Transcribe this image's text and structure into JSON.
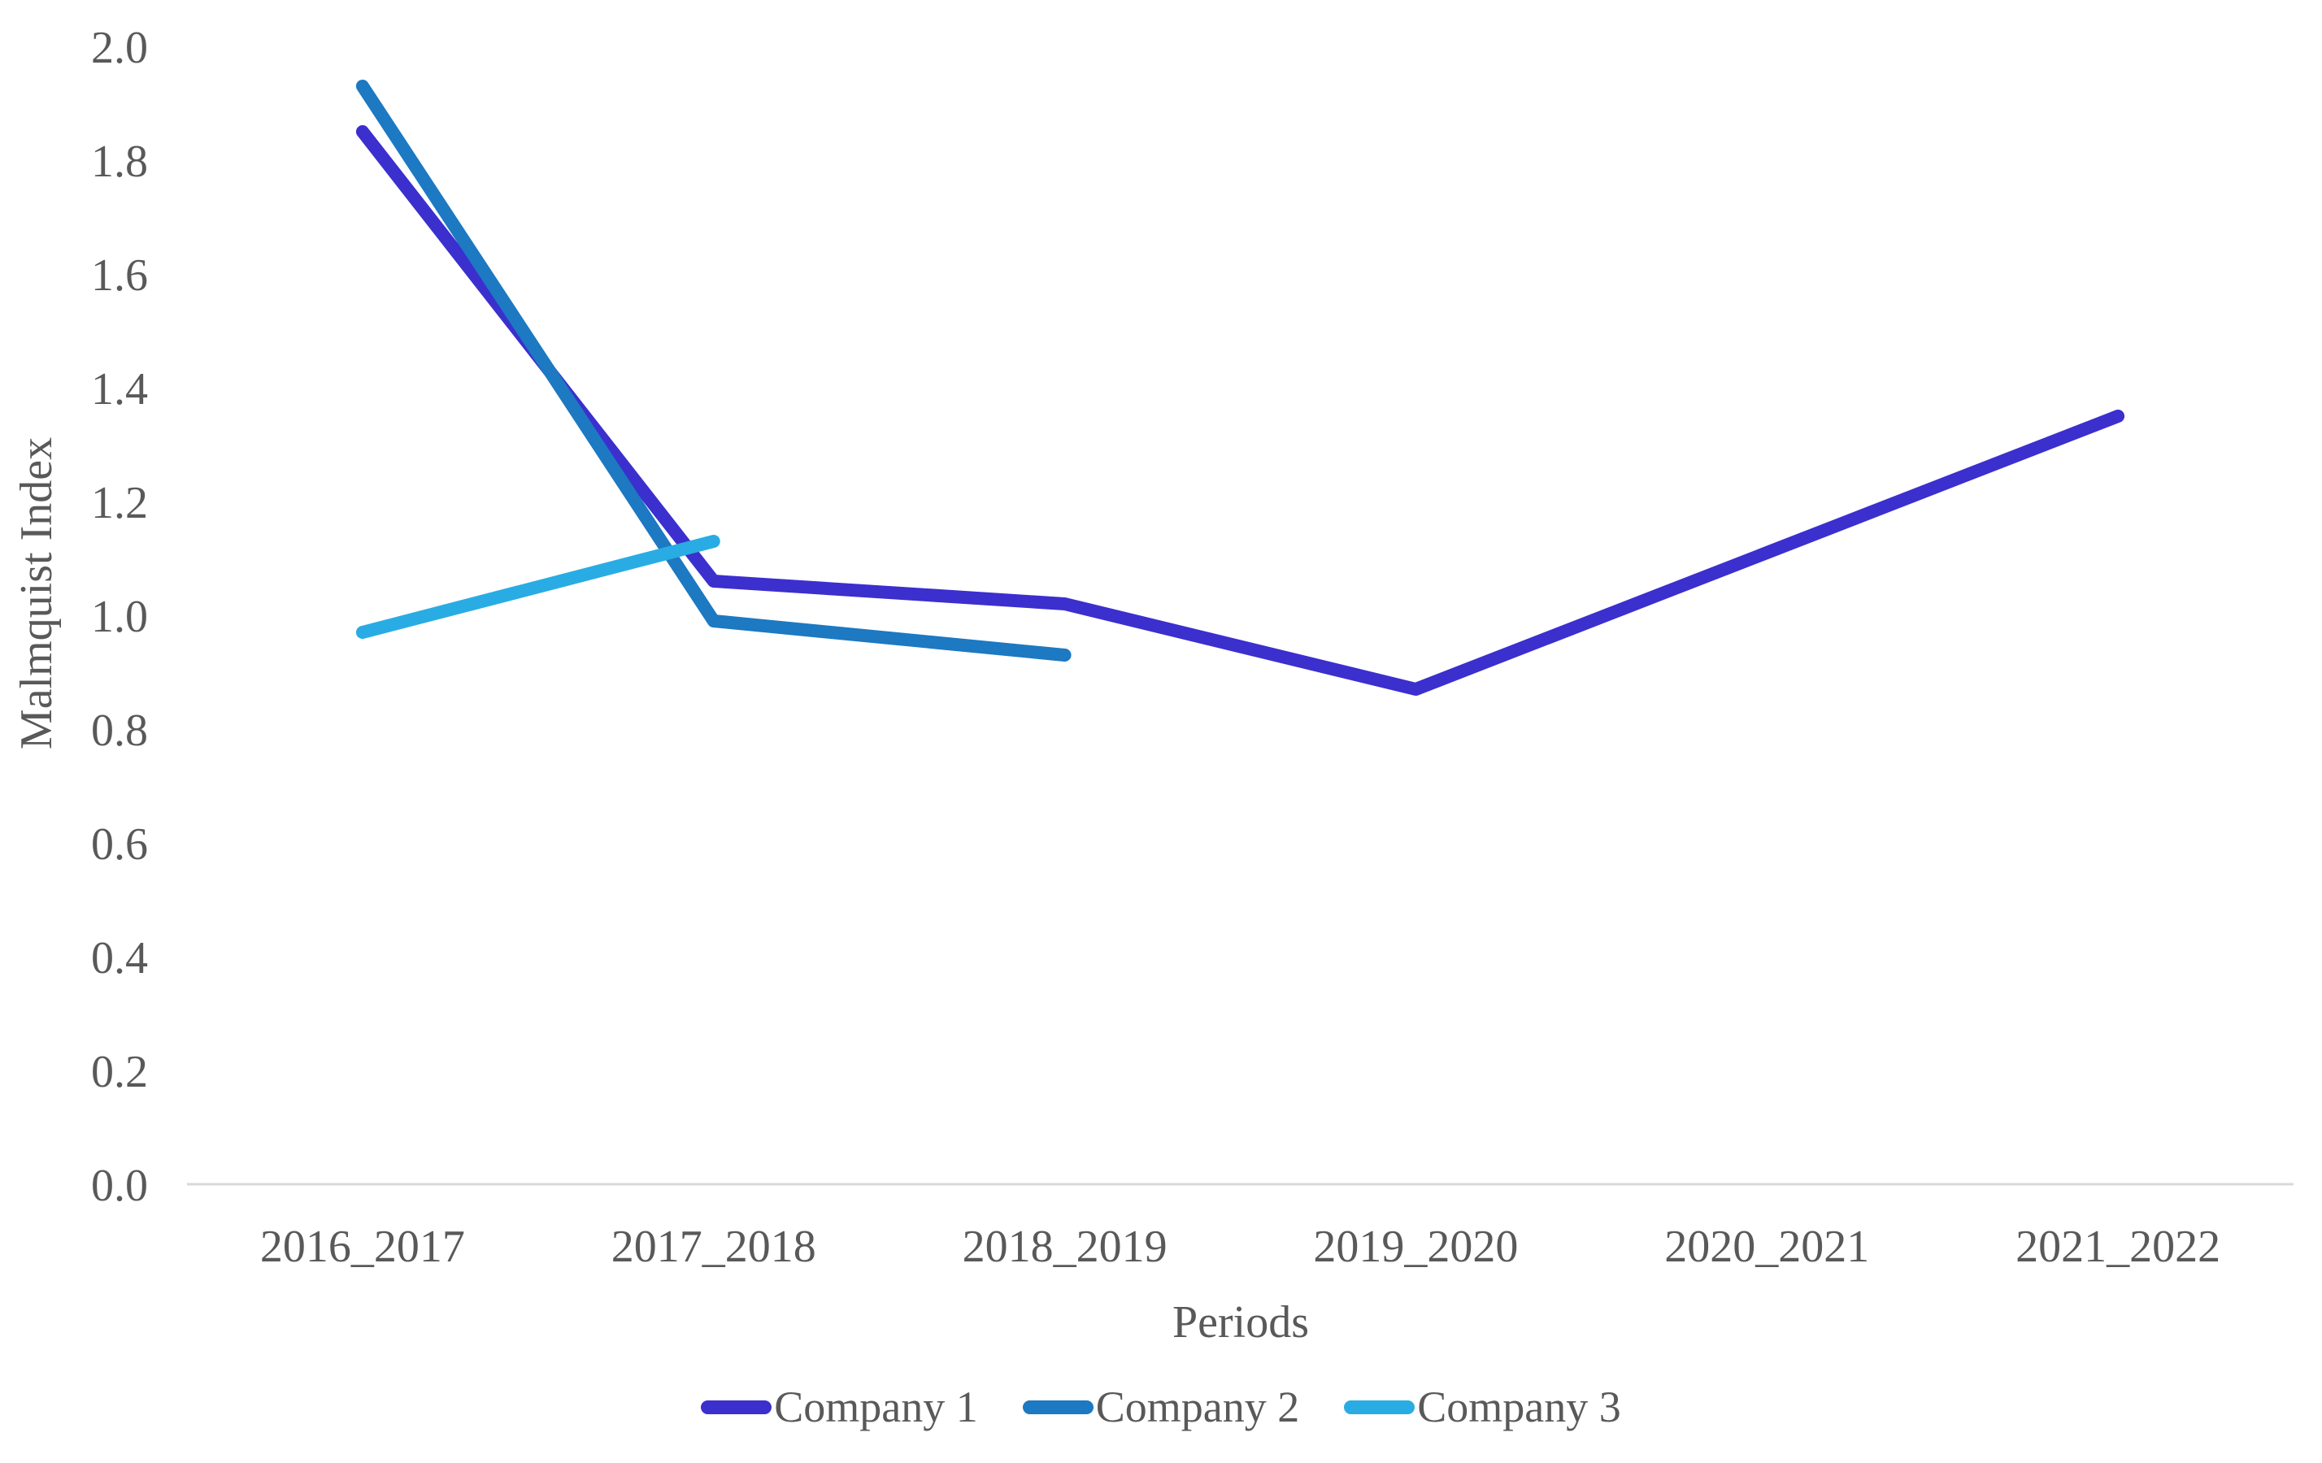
{
  "chart_data": {
    "type": "line",
    "xlabel": "Periods",
    "ylabel": "Malmquist Index",
    "categories": [
      "2016_2017",
      "2017_2018",
      "2018_2019",
      "2019_2020",
      "2020_2021",
      "2021_2022"
    ],
    "series": [
      {
        "name": "Company 1",
        "color": "#3B2FCE",
        "values": [
          1.85,
          1.06,
          1.02,
          0.87,
          1.11,
          1.35
        ]
      },
      {
        "name": "Company 2",
        "color": "#1C79C2",
        "values": [
          1.93,
          0.99,
          0.93,
          null,
          null,
          null
        ]
      },
      {
        "name": "Company 3",
        "color": "#29ACE3",
        "values": [
          0.97,
          1.13,
          null,
          null,
          null,
          null
        ]
      }
    ],
    "ylim": [
      0.0,
      2.0
    ],
    "yticks": [
      "0.0",
      "0.2",
      "0.4",
      "0.6",
      "0.8",
      "1.0",
      "1.2",
      "1.4",
      "1.6",
      "1.8",
      "2.0"
    ],
    "ytick_values": [
      0.0,
      0.2,
      0.4,
      0.6,
      0.8,
      1.0,
      1.2,
      1.4,
      1.6,
      1.8,
      2.0
    ],
    "grid": "x-baseline-only",
    "legend_position": "bottom-center",
    "line_width": 16,
    "colors": {
      "axis_line": "#D9D9D9",
      "text": "#595959",
      "background": "#ffffff"
    }
  }
}
